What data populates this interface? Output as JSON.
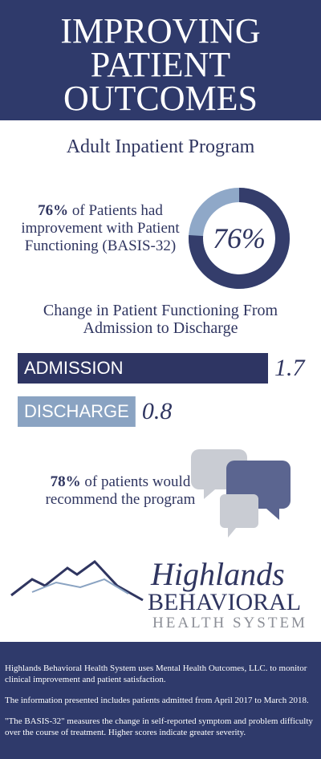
{
  "header": {
    "title_lines": [
      "IMPROVING",
      "PATIENT",
      "OUTCOMES"
    ]
  },
  "program": "Adult Inpatient Program",
  "stat1": {
    "highlight": "76%",
    "text": "of Patients had improvement with Patient Functioning (BASIS-32)",
    "value": 76,
    "value_label": "76%",
    "color": "#343d6b",
    "rest_color": "#8fa8c8"
  },
  "functioning_chart": {
    "title": "Change in Patient Functioning From Admission to Discharge",
    "categories": [
      "ADMISSION",
      "DISCHARGE"
    ],
    "values": [
      1.7,
      0.8
    ],
    "colors": [
      "#2e3563",
      "#8aa3c2"
    ]
  },
  "recommend": {
    "highlight": "78%",
    "text": "of patients would recommend the program"
  },
  "logo": {
    "line1": "Highlands",
    "line2": "BEHAVIORAL",
    "line3": "HEALTH SYSTEM"
  },
  "footer": {
    "paragraphs": [
      "Highlands Behavioral Health System uses Mental Health Outcomes, LLC. to monitor clinical improvement and patient satisfaction.",
      "The information presented includes patients admitted from April 2017 to March 2018.",
      "\"The BASIS-32\" measures the change in self-reported symptom and problem difficulty over the course of treatment. Higher scores indicate greater severity."
    ]
  }
}
